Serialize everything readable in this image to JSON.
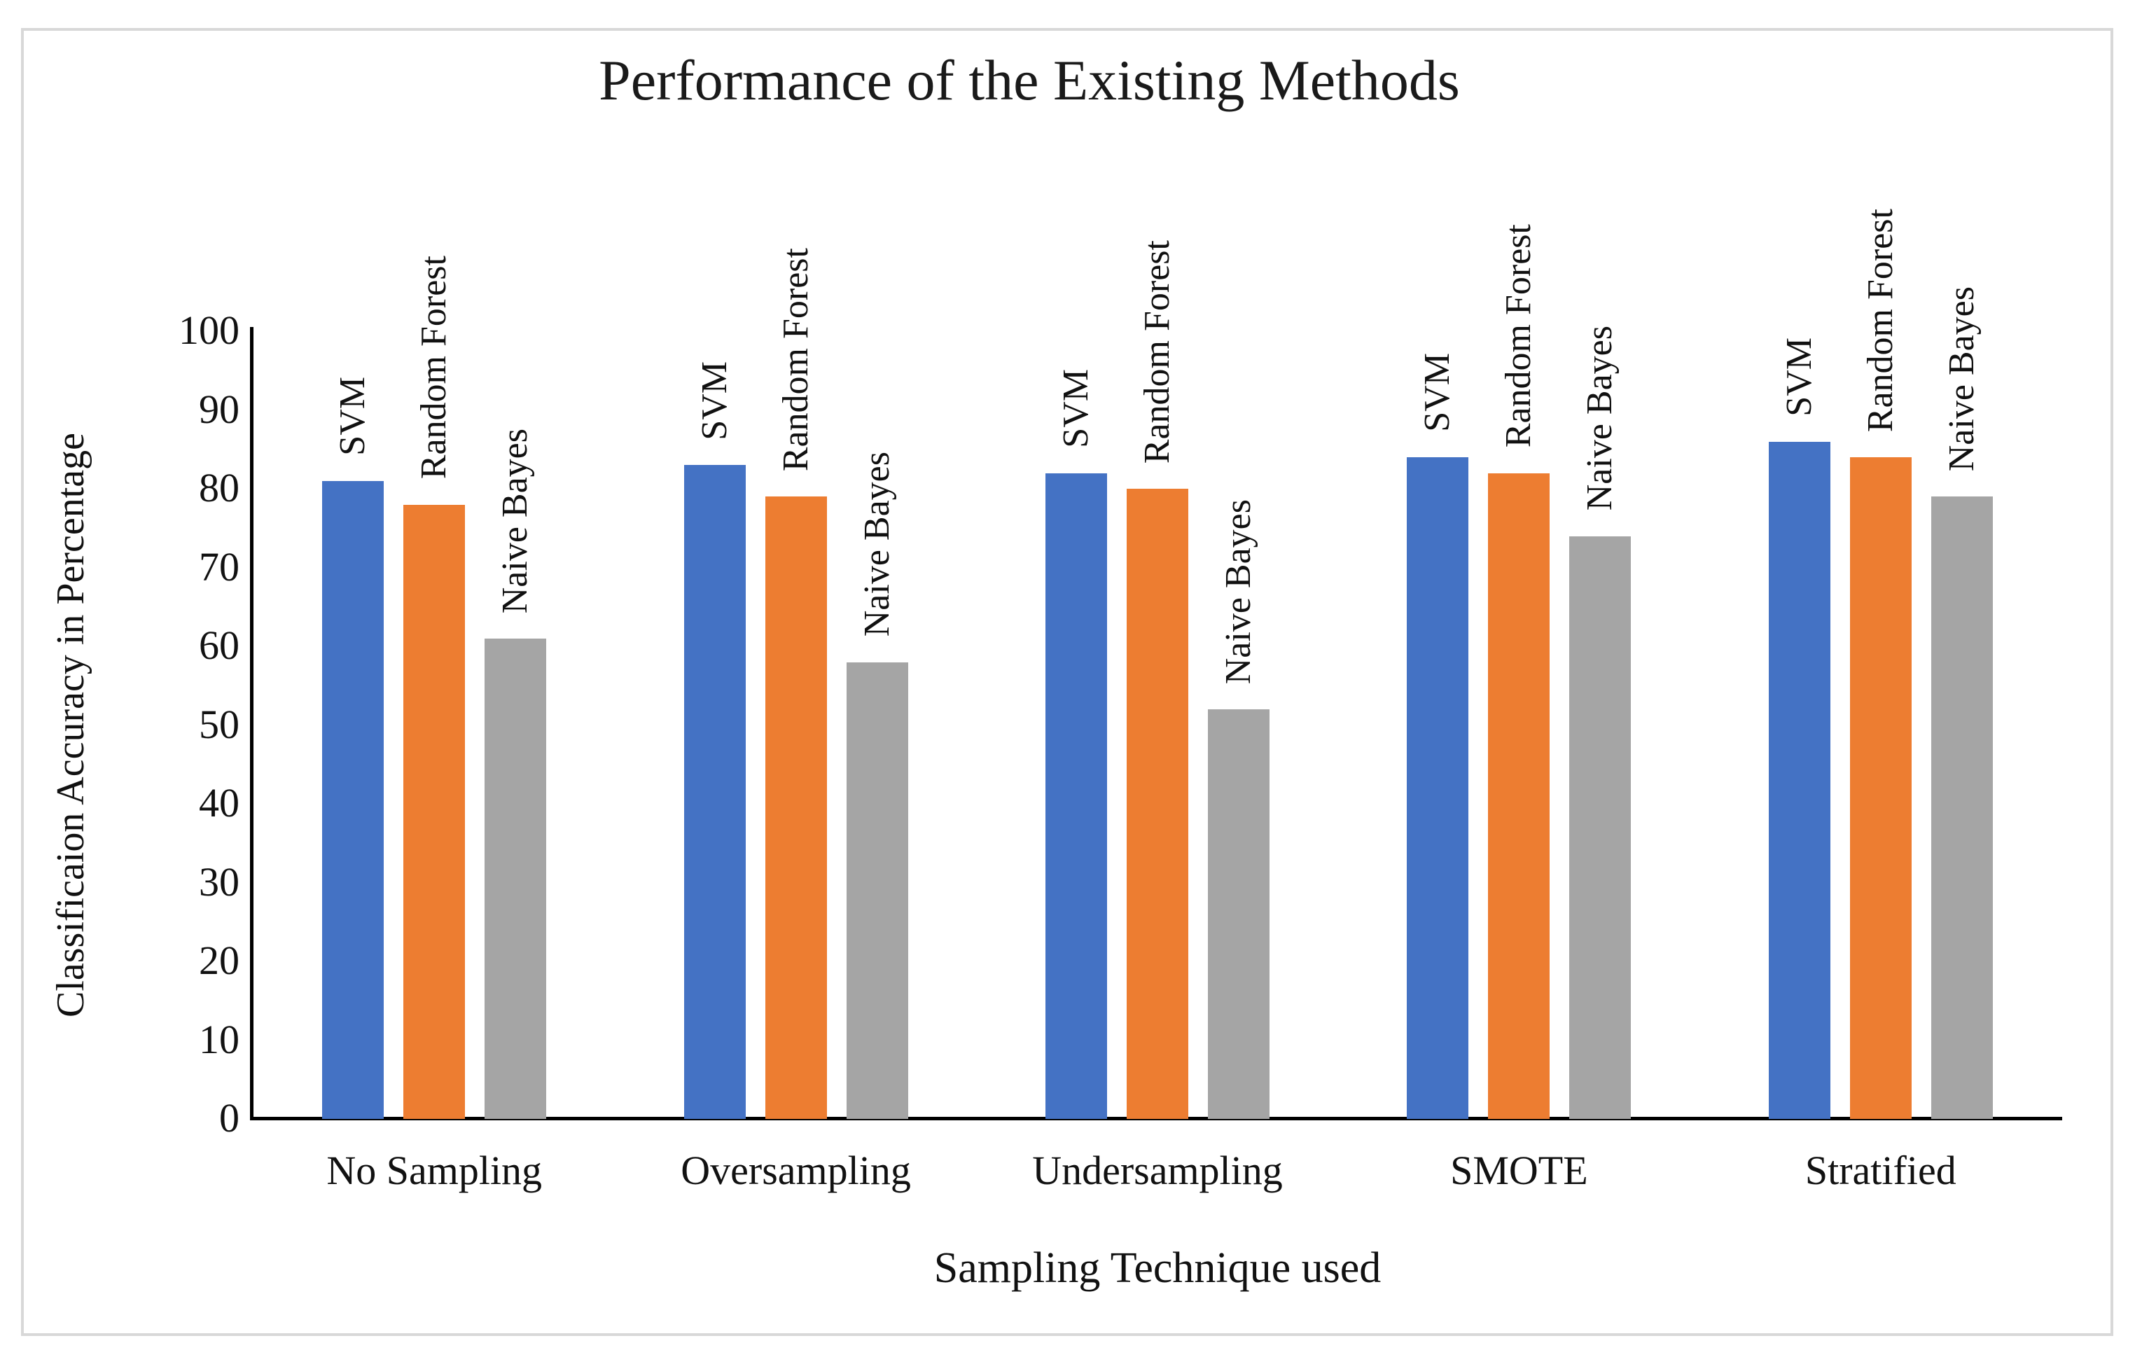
{
  "chart_data": {
    "type": "bar",
    "title": "Performance of the Existing Methods",
    "xlabel": "Sampling Technique used",
    "ylabel": "Classificaion Accuracy in Percentage",
    "categories": [
      "No Sampling",
      "Oversampling",
      "Undersampling",
      "SMOTE",
      "Stratified"
    ],
    "series": [
      {
        "name": "SVM",
        "color": "#4472C4",
        "values": [
          81,
          83,
          82,
          84,
          86
        ]
      },
      {
        "name": "Random Forest",
        "color": "#ED7D31",
        "values": [
          78,
          79,
          80,
          82,
          84
        ]
      },
      {
        "name": "Naive Bayes",
        "color": "#A5A5A5",
        "values": [
          61,
          58,
          52,
          74,
          79
        ]
      }
    ],
    "ylim": [
      0,
      100
    ],
    "yticks": [
      "0",
      "10",
      "20",
      "30",
      "40",
      "50",
      "60",
      "70",
      "80",
      "90",
      "100"
    ],
    "grid": false,
    "legend_position": "none",
    "series_labels_above_bars": true,
    "series_label_rotation_deg": -90
  },
  "frame": {
    "border_color": "#d8d8d8",
    "background": "#ffffff"
  }
}
